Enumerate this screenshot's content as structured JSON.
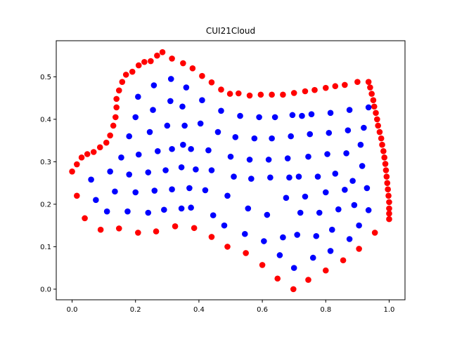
{
  "chart_data": {
    "type": "scatter",
    "title": "CUI21Cloud",
    "xlabel": "",
    "ylabel": "",
    "xlim": [
      -0.05,
      1.05
    ],
    "ylim": [
      -0.025,
      0.585
    ],
    "xticks": [
      "0.0",
      "0.2",
      "0.4",
      "0.6",
      "0.8",
      "1.0"
    ],
    "yticks": [
      "0.0",
      "0.1",
      "0.2",
      "0.3",
      "0.4",
      "0.5"
    ],
    "grid": false,
    "legend": "none",
    "colors": {
      "boundary": "#ff0000",
      "interior": "#0000ff"
    },
    "series": [
      {
        "color": "#ff0000",
        "points": [
          [
            0.0,
            0.277
          ],
          [
            0.015,
            0.294
          ],
          [
            0.03,
            0.31
          ],
          [
            0.048,
            0.318
          ],
          [
            0.068,
            0.323
          ],
          [
            0.088,
            0.334
          ],
          [
            0.108,
            0.345
          ],
          [
            0.12,
            0.362
          ],
          [
            0.13,
            0.385
          ],
          [
            0.137,
            0.405
          ],
          [
            0.14,
            0.428
          ],
          [
            0.14,
            0.448
          ],
          [
            0.148,
            0.468
          ],
          [
            0.158,
            0.488
          ],
          [
            0.17,
            0.505
          ],
          [
            0.19,
            0.512
          ],
          [
            0.21,
            0.527
          ],
          [
            0.228,
            0.535
          ],
          [
            0.248,
            0.537
          ],
          [
            0.268,
            0.55
          ],
          [
            0.285,
            0.558
          ],
          [
            0.315,
            0.543
          ],
          [
            0.35,
            0.532
          ],
          [
            0.38,
            0.52
          ],
          [
            0.41,
            0.502
          ],
          [
            0.44,
            0.487
          ],
          [
            0.47,
            0.47
          ],
          [
            0.498,
            0.46
          ],
          [
            0.525,
            0.461
          ],
          [
            0.56,
            0.456
          ],
          [
            0.595,
            0.458
          ],
          [
            0.63,
            0.458
          ],
          [
            0.665,
            0.458
          ],
          [
            0.7,
            0.462
          ],
          [
            0.735,
            0.466
          ],
          [
            0.765,
            0.469
          ],
          [
            0.8,
            0.474
          ],
          [
            0.83,
            0.478
          ],
          [
            0.86,
            0.481
          ],
          [
            0.9,
            0.488
          ],
          [
            0.935,
            0.488
          ],
          [
            0.94,
            0.475
          ],
          [
            0.945,
            0.46
          ],
          [
            0.95,
            0.445
          ],
          [
            0.953,
            0.43
          ],
          [
            0.958,
            0.415
          ],
          [
            0.962,
            0.4
          ],
          [
            0.965,
            0.385
          ],
          [
            0.97,
            0.37
          ],
          [
            0.975,
            0.355
          ],
          [
            0.978,
            0.34
          ],
          [
            0.982,
            0.325
          ],
          [
            0.985,
            0.31
          ],
          [
            0.988,
            0.295
          ],
          [
            0.99,
            0.28
          ],
          [
            0.992,
            0.265
          ],
          [
            0.994,
            0.25
          ],
          [
            0.996,
            0.235
          ],
          [
            0.998,
            0.22
          ],
          [
            1.0,
            0.205
          ],
          [
            1.0,
            0.19
          ],
          [
            1.0,
            0.178
          ],
          [
            1.0,
            0.165
          ],
          [
            0.015,
            0.22
          ],
          [
            0.04,
            0.167
          ],
          [
            0.09,
            0.14
          ],
          [
            0.148,
            0.143
          ],
          [
            0.208,
            0.133
          ],
          [
            0.265,
            0.136
          ],
          [
            0.325,
            0.148
          ],
          [
            0.385,
            0.144
          ],
          [
            0.44,
            0.123
          ],
          [
            0.49,
            0.1
          ],
          [
            0.548,
            0.085
          ],
          [
            0.6,
            0.057
          ],
          [
            0.648,
            0.025
          ],
          [
            0.698,
            0.0
          ],
          [
            0.745,
            0.022
          ],
          [
            0.8,
            0.044
          ],
          [
            0.855,
            0.068
          ],
          [
            0.905,
            0.095
          ],
          [
            0.955,
            0.133
          ]
        ]
      },
      {
        "color": "#0000ff",
        "points": [
          [
            0.06,
            0.258
          ],
          [
            0.075,
            0.21
          ],
          [
            0.11,
            0.183
          ],
          [
            0.12,
            0.277
          ],
          [
            0.135,
            0.23
          ],
          [
            0.155,
            0.31
          ],
          [
            0.175,
            0.183
          ],
          [
            0.18,
            0.27
          ],
          [
            0.18,
            0.36
          ],
          [
            0.2,
            0.228
          ],
          [
            0.2,
            0.405
          ],
          [
            0.208,
            0.453
          ],
          [
            0.21,
            0.317
          ],
          [
            0.24,
            0.18
          ],
          [
            0.24,
            0.275
          ],
          [
            0.245,
            0.37
          ],
          [
            0.255,
            0.422
          ],
          [
            0.258,
            0.48
          ],
          [
            0.26,
            0.232
          ],
          [
            0.27,
            0.325
          ],
          [
            0.29,
            0.187
          ],
          [
            0.295,
            0.28
          ],
          [
            0.3,
            0.385
          ],
          [
            0.31,
            0.443
          ],
          [
            0.312,
            0.495
          ],
          [
            0.315,
            0.235
          ],
          [
            0.315,
            0.33
          ],
          [
            0.345,
            0.287
          ],
          [
            0.345,
            0.19
          ],
          [
            0.348,
            0.43
          ],
          [
            0.35,
            0.34
          ],
          [
            0.355,
            0.385
          ],
          [
            0.36,
            0.475
          ],
          [
            0.37,
            0.238
          ],
          [
            0.375,
            0.192
          ],
          [
            0.375,
            0.33
          ],
          [
            0.39,
            0.282
          ],
          [
            0.405,
            0.39
          ],
          [
            0.41,
            0.445
          ],
          [
            0.42,
            0.233
          ],
          [
            0.43,
            0.327
          ],
          [
            0.44,
            0.28
          ],
          [
            0.445,
            0.174
          ],
          [
            0.46,
            0.37
          ],
          [
            0.47,
            0.42
          ],
          [
            0.48,
            0.15
          ],
          [
            0.49,
            0.22
          ],
          [
            0.5,
            0.312
          ],
          [
            0.51,
            0.265
          ],
          [
            0.515,
            0.358
          ],
          [
            0.53,
            0.408
          ],
          [
            0.545,
            0.13
          ],
          [
            0.555,
            0.19
          ],
          [
            0.56,
            0.305
          ],
          [
            0.565,
            0.26
          ],
          [
            0.575,
            0.355
          ],
          [
            0.59,
            0.405
          ],
          [
            0.605,
            0.113
          ],
          [
            0.615,
            0.175
          ],
          [
            0.62,
            0.305
          ],
          [
            0.625,
            0.263
          ],
          [
            0.63,
            0.355
          ],
          [
            0.64,
            0.405
          ],
          [
            0.655,
            0.08
          ],
          [
            0.665,
            0.122
          ],
          [
            0.675,
            0.215
          ],
          [
            0.68,
            0.308
          ],
          [
            0.685,
            0.263
          ],
          [
            0.69,
            0.36
          ],
          [
            0.695,
            0.41
          ],
          [
            0.7,
            0.05
          ],
          [
            0.71,
            0.128
          ],
          [
            0.715,
            0.265
          ],
          [
            0.72,
            0.18
          ],
          [
            0.725,
            0.408
          ],
          [
            0.735,
            0.218
          ],
          [
            0.745,
            0.312
          ],
          [
            0.75,
            0.365
          ],
          [
            0.755,
            0.412
          ],
          [
            0.76,
            0.074
          ],
          [
            0.77,
            0.125
          ],
          [
            0.775,
            0.265
          ],
          [
            0.78,
            0.18
          ],
          [
            0.8,
            0.228
          ],
          [
            0.805,
            0.318
          ],
          [
            0.81,
            0.368
          ],
          [
            0.815,
            0.415
          ],
          [
            0.815,
            0.09
          ],
          [
            0.82,
            0.14
          ],
          [
            0.83,
            0.272
          ],
          [
            0.84,
            0.188
          ],
          [
            0.86,
            0.234
          ],
          [
            0.865,
            0.32
          ],
          [
            0.87,
            0.374
          ],
          [
            0.875,
            0.422
          ],
          [
            0.875,
            0.118
          ],
          [
            0.885,
            0.255
          ],
          [
            0.89,
            0.198
          ],
          [
            0.905,
            0.15
          ],
          [
            0.91,
            0.34
          ],
          [
            0.915,
            0.29
          ],
          [
            0.92,
            0.38
          ],
          [
            0.93,
            0.238
          ],
          [
            0.935,
            0.186
          ],
          [
            0.935,
            0.428
          ]
        ]
      }
    ]
  }
}
